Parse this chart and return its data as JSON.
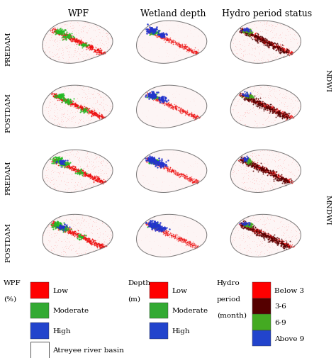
{
  "col_titles": [
    "WPF",
    "Wetland depth",
    "Hydro period status"
  ],
  "row_labels_left": [
    "PREDAM",
    "POSTDAM",
    "PREDAM",
    "POSTDAM"
  ],
  "side_labels": [
    "NDWI",
    "MNDWI"
  ],
  "legend_items": {
    "wpf_items": [
      [
        "#ff0000",
        "Low"
      ],
      [
        "#33aa33",
        "Moderate"
      ],
      [
        "#2244cc",
        "High"
      ]
    ],
    "depth_items": [
      [
        "#ff0000",
        "Low"
      ],
      [
        "#33aa33",
        "Moderate"
      ],
      [
        "#2244cc",
        "High"
      ]
    ],
    "hydro_items": [
      [
        "#ff0000",
        "Below 3"
      ],
      [
        "#550000",
        "3-6"
      ],
      [
        "#44aa22",
        "6-9"
      ],
      [
        "#2244cc",
        "Above 9"
      ]
    ],
    "basin_label": "Atreyee river basin"
  },
  "figure_bg": "#ffffff",
  "title_fontsize": 9,
  "label_fontsize": 7.5,
  "legend_fontsize": 7.5
}
